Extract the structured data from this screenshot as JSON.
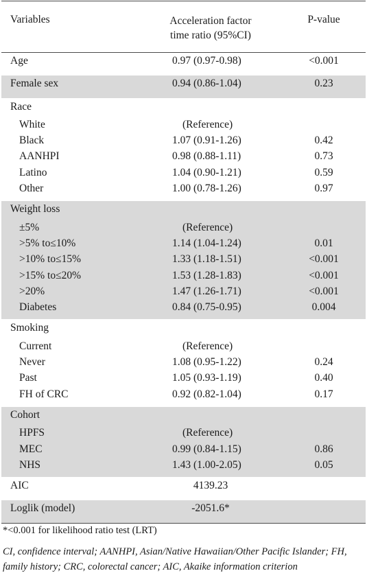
{
  "header": {
    "variables": "Variables",
    "estimate": "Acceleration factor time ratio (95%CI)",
    "pvalue": "P-value"
  },
  "groups": [
    {
      "shade": false,
      "rows": [
        {
          "label": "Age",
          "estimate": "0.97 (0.97-0.98)",
          "p": "<0.001",
          "indent": false
        }
      ]
    },
    {
      "shade": true,
      "rows": [
        {
          "label": "Female sex",
          "estimate": "0.94 (0.86-1.04)",
          "p": "0.23",
          "indent": false
        }
      ]
    },
    {
      "shade": false,
      "rows": [
        {
          "label": "Race",
          "estimate": "",
          "p": "",
          "indent": false
        },
        {
          "label": "White",
          "estimate": "(Reference)",
          "p": "",
          "indent": true,
          "ref": true
        },
        {
          "label": "Black",
          "estimate": "1.07 (0.91-1.26)",
          "p": "0.42",
          "indent": true
        },
        {
          "label": "AANHPI",
          "estimate": "0.98 (0.88-1.11)",
          "p": "0.73",
          "indent": true
        },
        {
          "label": "Latino",
          "estimate": "1.04 (0.90-1.21)",
          "p": "0.59",
          "indent": true
        },
        {
          "label": "Other",
          "estimate": "1.00 (0.78-1.26)",
          "p": "0.97",
          "indent": true
        }
      ]
    },
    {
      "shade": true,
      "rows": [
        {
          "label": "Weight loss",
          "estimate": "",
          "p": "",
          "indent": false
        },
        {
          "label": "±5%",
          "estimate": "(Reference)",
          "p": "",
          "indent": true,
          "ref": true
        },
        {
          "label": ">5% to≤10%",
          "estimate": "1.14 (1.04-1.24)",
          "p": "0.01",
          "indent": true
        },
        {
          "label": ">10% to≤15%",
          "estimate": "1.33 (1.18-1.51)",
          "p": "<0.001",
          "indent": true
        },
        {
          "label": ">15% to≤20%",
          "estimate": "1.53 (1.28-1.83)",
          "p": "<0.001",
          "indent": true
        },
        {
          "label": ">20%",
          "estimate": "1.47 (1.26-1.71)",
          "p": "<0.001",
          "indent": true
        },
        {
          "label": "Diabetes",
          "estimate": "0.84 (0.75-0.95)",
          "p": "0.004",
          "indent": true
        }
      ]
    },
    {
      "shade": false,
      "rows": [
        {
          "label": "Smoking",
          "estimate": "",
          "p": "",
          "indent": false
        },
        {
          "label": "Current",
          "estimate": "(Reference)",
          "p": "",
          "indent": true,
          "ref": true
        },
        {
          "label": "Never",
          "estimate": "1.08 (0.95-1.22)",
          "p": "0.24",
          "indent": true
        },
        {
          "label": "Past",
          "estimate": "1.05 (0.93-1.19)",
          "p": "0.40",
          "indent": true
        },
        {
          "label": "FH of CRC",
          "estimate": "0.92 (0.82-1.04)",
          "p": "0.17",
          "indent": true
        }
      ]
    },
    {
      "shade": true,
      "rows": [
        {
          "label": "Cohort",
          "estimate": "",
          "p": "",
          "indent": false
        },
        {
          "label": "HPFS",
          "estimate": "(Reference)",
          "p": "",
          "indent": true,
          "ref": true
        },
        {
          "label": "MEC",
          "estimate": "0.99 (0.84-1.15)",
          "p": "0.86",
          "indent": true
        },
        {
          "label": "NHS",
          "estimate": "1.43 (1.00-2.05)",
          "p": "0.05",
          "indent": true
        }
      ]
    },
    {
      "shade": false,
      "rows": [
        {
          "label": "AIC",
          "estimate": "4139.23",
          "p": "",
          "indent": false,
          "mid": true
        }
      ]
    },
    {
      "shade": true,
      "rows": [
        {
          "label": "Loglik (model)",
          "estimate": "-2051.6*",
          "p": "",
          "indent": false,
          "mid": true
        }
      ]
    }
  ],
  "notes": {
    "lrt": "*<0.001 for likelihood ratio test (LRT)",
    "abbreviations": "CI, confidence interval; AANHPI, Asian/Native Hawaiian/Other Pacific Islander; FH, family history; CRC, colorectal cancer; AIC, Akaike information criterion"
  }
}
